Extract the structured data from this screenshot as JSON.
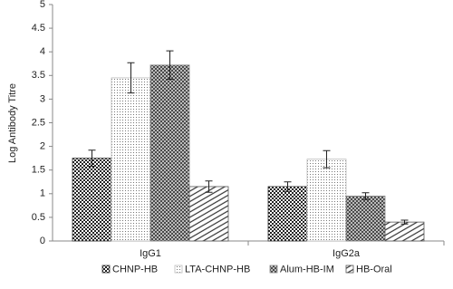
{
  "chart_data": {
    "type": "bar",
    "y_label": "Log Antibody Titre",
    "categories": [
      "IgG1",
      "IgG2a"
    ],
    "series": [
      {
        "name": "CHNP-HB",
        "color": "#333333",
        "pattern": "checker",
        "values": [
          1.75,
          1.15
        ],
        "errors": [
          0.17,
          0.1
        ]
      },
      {
        "name": "LTA-CHNP-HB",
        "color": "#bbbbbb",
        "pattern": "dots",
        "values": [
          3.45,
          1.73
        ],
        "errors": [
          0.32,
          0.18
        ]
      },
      {
        "name": "Alum-HB-IM",
        "color": "#888888",
        "pattern": "mesh",
        "values": [
          3.72,
          0.95
        ],
        "errors": [
          0.3,
          0.07
        ]
      },
      {
        "name": "HB-Oral",
        "color": "#555555",
        "pattern": "stripes",
        "values": [
          1.15,
          0.4
        ],
        "errors": [
          0.12,
          0.04
        ]
      }
    ],
    "ylim": [
      0,
      5
    ],
    "yticks": [
      0,
      0.5,
      1,
      1.5,
      2,
      2.5,
      3,
      3.5,
      4,
      4.5,
      5
    ]
  }
}
